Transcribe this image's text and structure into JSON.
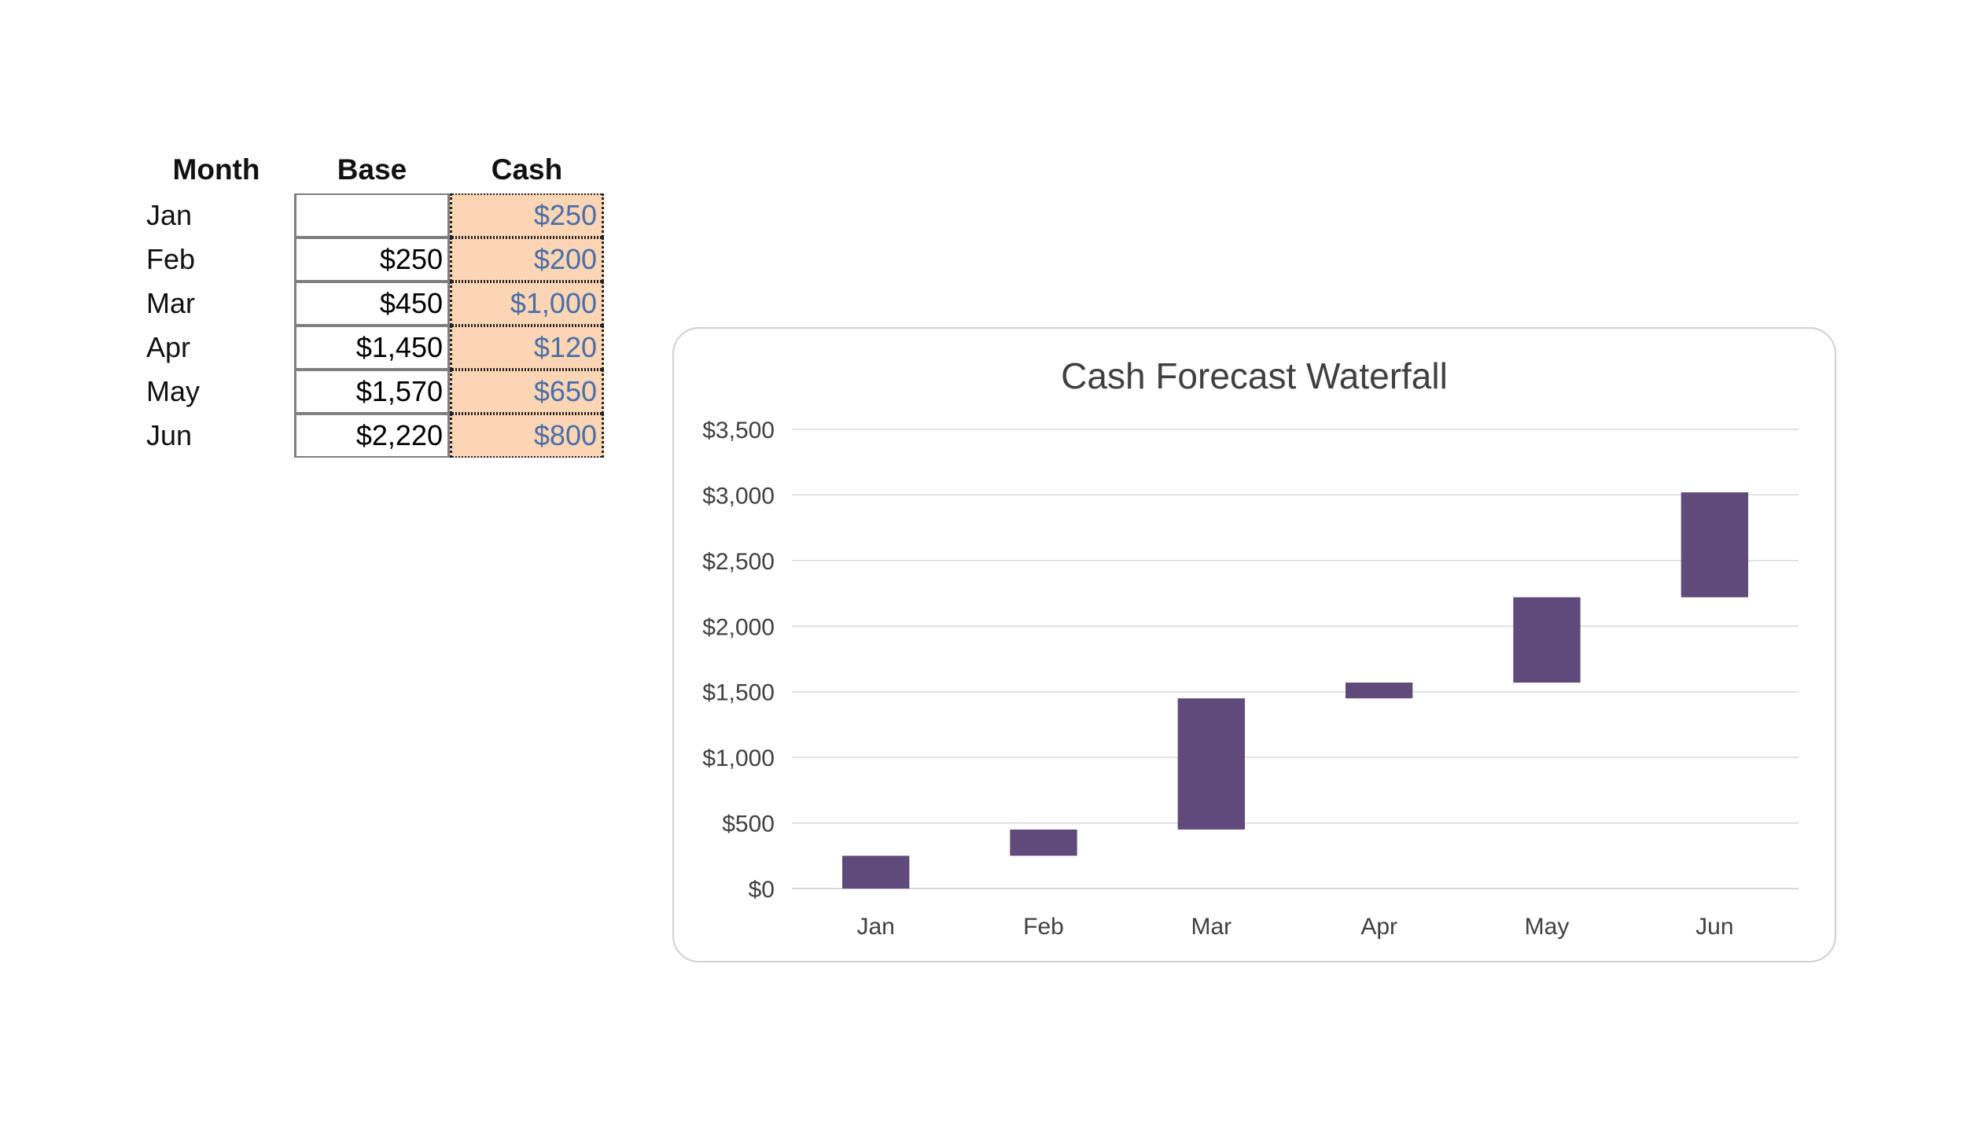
{
  "table": {
    "headers": {
      "month": "Month",
      "base": "Base",
      "cash": "Cash"
    },
    "rows": [
      {
        "month": "Jan",
        "base": "",
        "cash": "$250"
      },
      {
        "month": "Feb",
        "base": "$250",
        "cash": "$200"
      },
      {
        "month": "Mar",
        "base": "$450",
        "cash": "$1,000"
      },
      {
        "month": "Apr",
        "base": "$1,450",
        "cash": "$120"
      },
      {
        "month": "May",
        "base": "$1,570",
        "cash": "$650"
      },
      {
        "month": "Jun",
        "base": "$2,220",
        "cash": "$800"
      }
    ]
  },
  "colors": {
    "bar": "#604a7b",
    "cash_fill": "#fcd5b5",
    "cash_text": "#4a6fa8",
    "gridline": "#d9d9d9"
  },
  "chart_data": {
    "type": "bar",
    "subtype": "stacked-waterfall",
    "title": "Cash Forecast Waterfall",
    "xlabel": "",
    "ylabel": "",
    "categories": [
      "Jan",
      "Feb",
      "Mar",
      "Apr",
      "May",
      "Jun"
    ],
    "series": [
      {
        "values": [
          0,
          250,
          450,
          1450,
          1570,
          2220
        ],
        "visible": false
      },
      {
        "values": [
          250,
          200,
          1000,
          120,
          650,
          800
        ],
        "visible": true
      }
    ],
    "ylim": [
      0,
      3500
    ],
    "ytick_step": 500,
    "ytick_labels": [
      "$0",
      "$500",
      "$1,000",
      "$1,500",
      "$2,000",
      "$2,500",
      "$3,000",
      "$3,500"
    ],
    "grid": true,
    "legend": "none"
  }
}
